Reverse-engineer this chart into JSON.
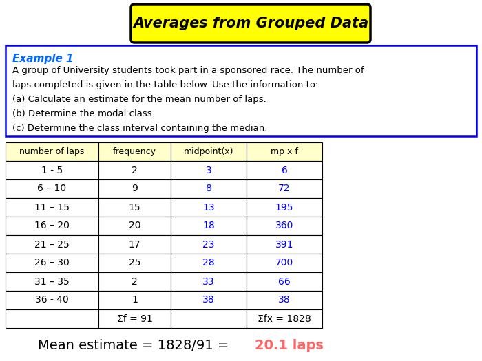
{
  "title": "Averages from Grouped Data",
  "title_bg": "#FFFF00",
  "title_border": "#000000",
  "example_header": "Example 1",
  "example_header_color": "#0066FF",
  "example_text": [
    "A group of University students took part in a sponsored race. The number of",
    "laps completed is given in the table below. Use the information to:",
    "(a) Calculate an estimate for the mean number of laps.",
    "(b) Determine the modal class.",
    "(c) Determine the class interval containing the median."
  ],
  "table_header": [
    "number of laps",
    "frequency",
    "midpoint(x)",
    "mp x f"
  ],
  "table_header_bg": "#FFFFCC",
  "table_rows": [
    [
      "1 - 5",
      "2",
      "3",
      "6"
    ],
    [
      "6 – 10",
      "9",
      "8",
      "72"
    ],
    [
      "11 – 15",
      "15",
      "13",
      "195"
    ],
    [
      "16 – 20",
      "20",
      "18",
      "360"
    ],
    [
      "21 – 25",
      "17",
      "23",
      "391"
    ],
    [
      "26 – 30",
      "25",
      "28",
      "700"
    ],
    [
      "31 – 35",
      "2",
      "33",
      "66"
    ],
    [
      "36 - 40",
      "1",
      "38",
      "38"
    ]
  ],
  "table_footer": [
    "",
    "Σf = 91",
    "",
    "Σfx = 1828"
  ],
  "blue_color": "#0000FF",
  "black_color": "#000000",
  "red_color": "#FF6666",
  "mean_text_black": "Mean estimate = 1828/91 = ",
  "mean_text_red": "20.1 laps",
  "bg_color": "#FFFFFF",
  "fig_w": 7.0,
  "fig_h": 5.25,
  "dpi": 100
}
